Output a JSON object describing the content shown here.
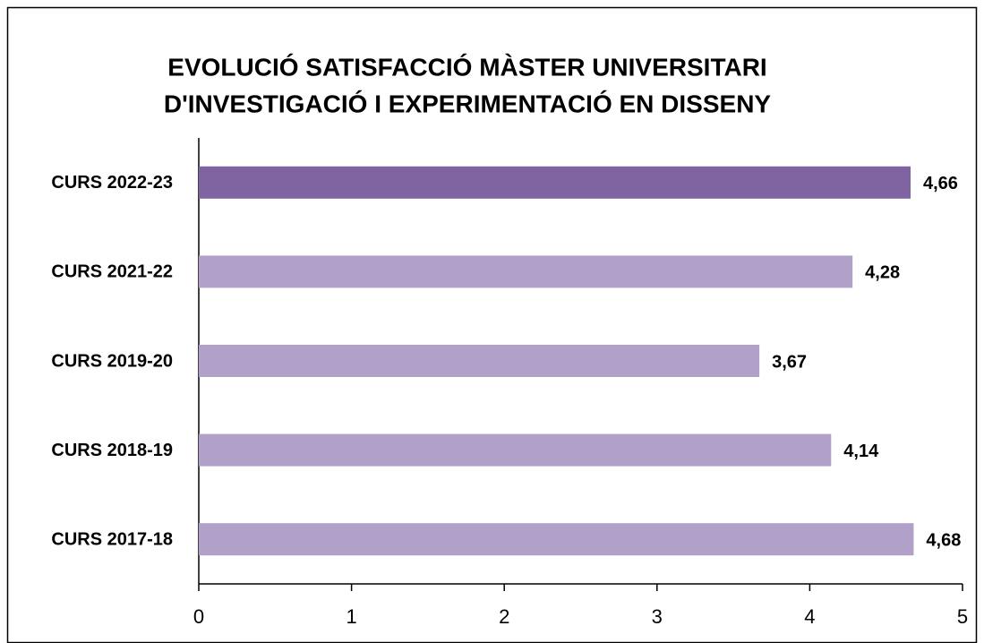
{
  "chart_data": {
    "type": "barh",
    "title": [
      "EVOLUCIÓ SATISFACCIÓ MÀSTER UNIVERSITARI",
      "D'INVESTIGACIÓ I EXPERIMENTACIÓ EN DISSENY"
    ],
    "categories": [
      "CURS 2022-23",
      "CURS 2021-22",
      "CURS 2019-20",
      "CURS 2018-19",
      "CURS 2017-18"
    ],
    "values": [
      4.66,
      4.28,
      3.67,
      4.14,
      4.68
    ],
    "value_labels": [
      "4,66",
      "4,28",
      "3,67",
      "4,14",
      "4,68"
    ],
    "colors": [
      "#8064a2",
      "#b1a0c7",
      "#b1a0c7",
      "#b1a0c7",
      "#b1a0c7"
    ],
    "xlim": [
      0,
      5
    ],
    "xticks": [
      0,
      1,
      2,
      3,
      4,
      5
    ],
    "grid": false
  }
}
